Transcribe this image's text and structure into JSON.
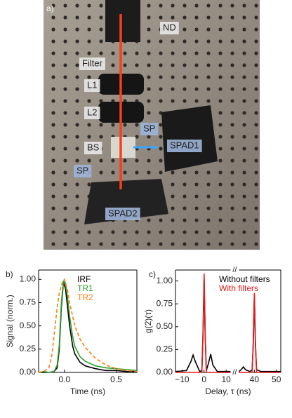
{
  "photo": {
    "panel_label": "a)",
    "labels": [
      "ND",
      "Filter",
      "L1",
      "L2",
      "BS",
      "SP",
      "SPAD1",
      "SP",
      "SPAD2"
    ]
  },
  "chart_data": [
    {
      "type": "line",
      "panel_label": "b)",
      "xlabel": "Time (ns)",
      "ylabel": "Signal (norm.)",
      "xlim": [
        -0.25,
        0.7
      ],
      "ylim": [
        0,
        1.1
      ],
      "xticks": [
        {
          "value": 0,
          "label": "0.0"
        },
        {
          "value": 0.5,
          "label": "0.5"
        }
      ],
      "yticks": [
        {
          "value": 0,
          "label": "0.00"
        },
        {
          "value": 0.25,
          "label": "0.25"
        },
        {
          "value": 0.5,
          "label": "0.50"
        },
        {
          "value": 0.75,
          "label": "0.75"
        },
        {
          "value": 1,
          "label": "1.00"
        }
      ],
      "series": [
        {
          "name": "IRF",
          "color": "#000000",
          "dash": false,
          "x": [
            -0.25,
            -0.2,
            -0.15,
            -0.1,
            -0.07,
            -0.05,
            -0.03,
            -0.01,
            0.01,
            0.03,
            0.05,
            0.08,
            0.1,
            0.15,
            0.2,
            0.3,
            0.4,
            0.5,
            0.6,
            0.7
          ],
          "values": [
            0,
            0,
            0,
            0.01,
            0.05,
            0.25,
            0.7,
            0.97,
            0.9,
            0.7,
            0.5,
            0.28,
            0.2,
            0.11,
            0.07,
            0.04,
            0.02,
            0.02,
            0.01,
            0.01
          ]
        },
        {
          "name": "TR1",
          "color": "#2ca02c",
          "dash": false,
          "x": [
            -0.25,
            -0.2,
            -0.15,
            -0.1,
            -0.07,
            -0.05,
            -0.03,
            -0.01,
            0.01,
            0.03,
            0.05,
            0.08,
            0.1,
            0.15,
            0.2,
            0.3,
            0.4,
            0.5,
            0.6,
            0.7
          ],
          "values": [
            0,
            0.01,
            0,
            0.01,
            0.08,
            0.3,
            0.75,
            0.98,
            0.96,
            0.8,
            0.6,
            0.38,
            0.28,
            0.17,
            0.12,
            0.07,
            0.05,
            0.04,
            0.03,
            0.02
          ]
        },
        {
          "name": "TR2",
          "color": "#ff7f0e",
          "dash": true,
          "x": [
            -0.25,
            -0.2,
            -0.15,
            -0.12,
            -0.1,
            -0.07,
            -0.05,
            -0.02,
            0,
            0.03,
            0.05,
            0.1,
            0.15,
            0.2,
            0.3,
            0.4,
            0.5,
            0.6,
            0.7
          ],
          "values": [
            0,
            0.01,
            0.05,
            0.2,
            0.4,
            0.7,
            0.85,
            0.97,
            1.0,
            0.88,
            0.75,
            0.5,
            0.36,
            0.27,
            0.15,
            0.08,
            0.04,
            0.02,
            0.01
          ]
        }
      ]
    },
    {
      "type": "line",
      "panel_label": "c)",
      "xlabel": "Delay, τ  (ns)",
      "ylabel": "g(2)(τ)",
      "ylim": [
        0,
        1.12
      ],
      "xsegments": [
        {
          "xlim": [
            -13,
            12
          ],
          "xticks": [
            {
              "value": -10,
              "label": "−10"
            },
            0,
            10
          ]
        },
        {
          "xlim": [
            33,
            52
          ],
          "xticks": [
            40,
            50
          ]
        }
      ],
      "yticks": [
        {
          "value": 0,
          "label": "0.00"
        },
        {
          "value": 0.25,
          "label": "0.25"
        },
        {
          "value": 0.5,
          "label": "0.50"
        },
        {
          "value": 0.75,
          "label": "0.75"
        },
        {
          "value": 1,
          "label": "1.00"
        }
      ],
      "series": [
        {
          "name": "Without filters",
          "color": "#000000",
          "dash": false,
          "x": [
            -13,
            -8,
            -6,
            -5,
            -4,
            -2,
            -1,
            -0.5,
            0,
            0.5,
            1,
            2,
            3,
            4,
            6,
            12,
            33,
            34,
            35,
            36,
            38,
            39,
            39.5,
            40,
            40.5,
            41,
            43,
            52
          ],
          "values": [
            0.01,
            0.02,
            0.12,
            0.19,
            0.12,
            0.01,
            0.02,
            0.4,
            1.02,
            0.4,
            0.02,
            0.1,
            0.2,
            0.08,
            0.01,
            0.01,
            0.01,
            0.03,
            0.06,
            0.03,
            0.01,
            0.03,
            0.3,
            0.85,
            0.3,
            0.03,
            0.01,
            0.01
          ]
        },
        {
          "name": "With filters",
          "color": "#e41a1c",
          "dash": false,
          "x": [
            -13,
            -1,
            -0.5,
            0,
            0.5,
            1,
            12,
            33,
            39,
            39.5,
            40,
            40.5,
            41,
            52
          ],
          "values": [
            0,
            0,
            0.45,
            1.08,
            0.45,
            0,
            0,
            0,
            0,
            0.35,
            0.87,
            0.35,
            0,
            0
          ]
        }
      ]
    }
  ]
}
